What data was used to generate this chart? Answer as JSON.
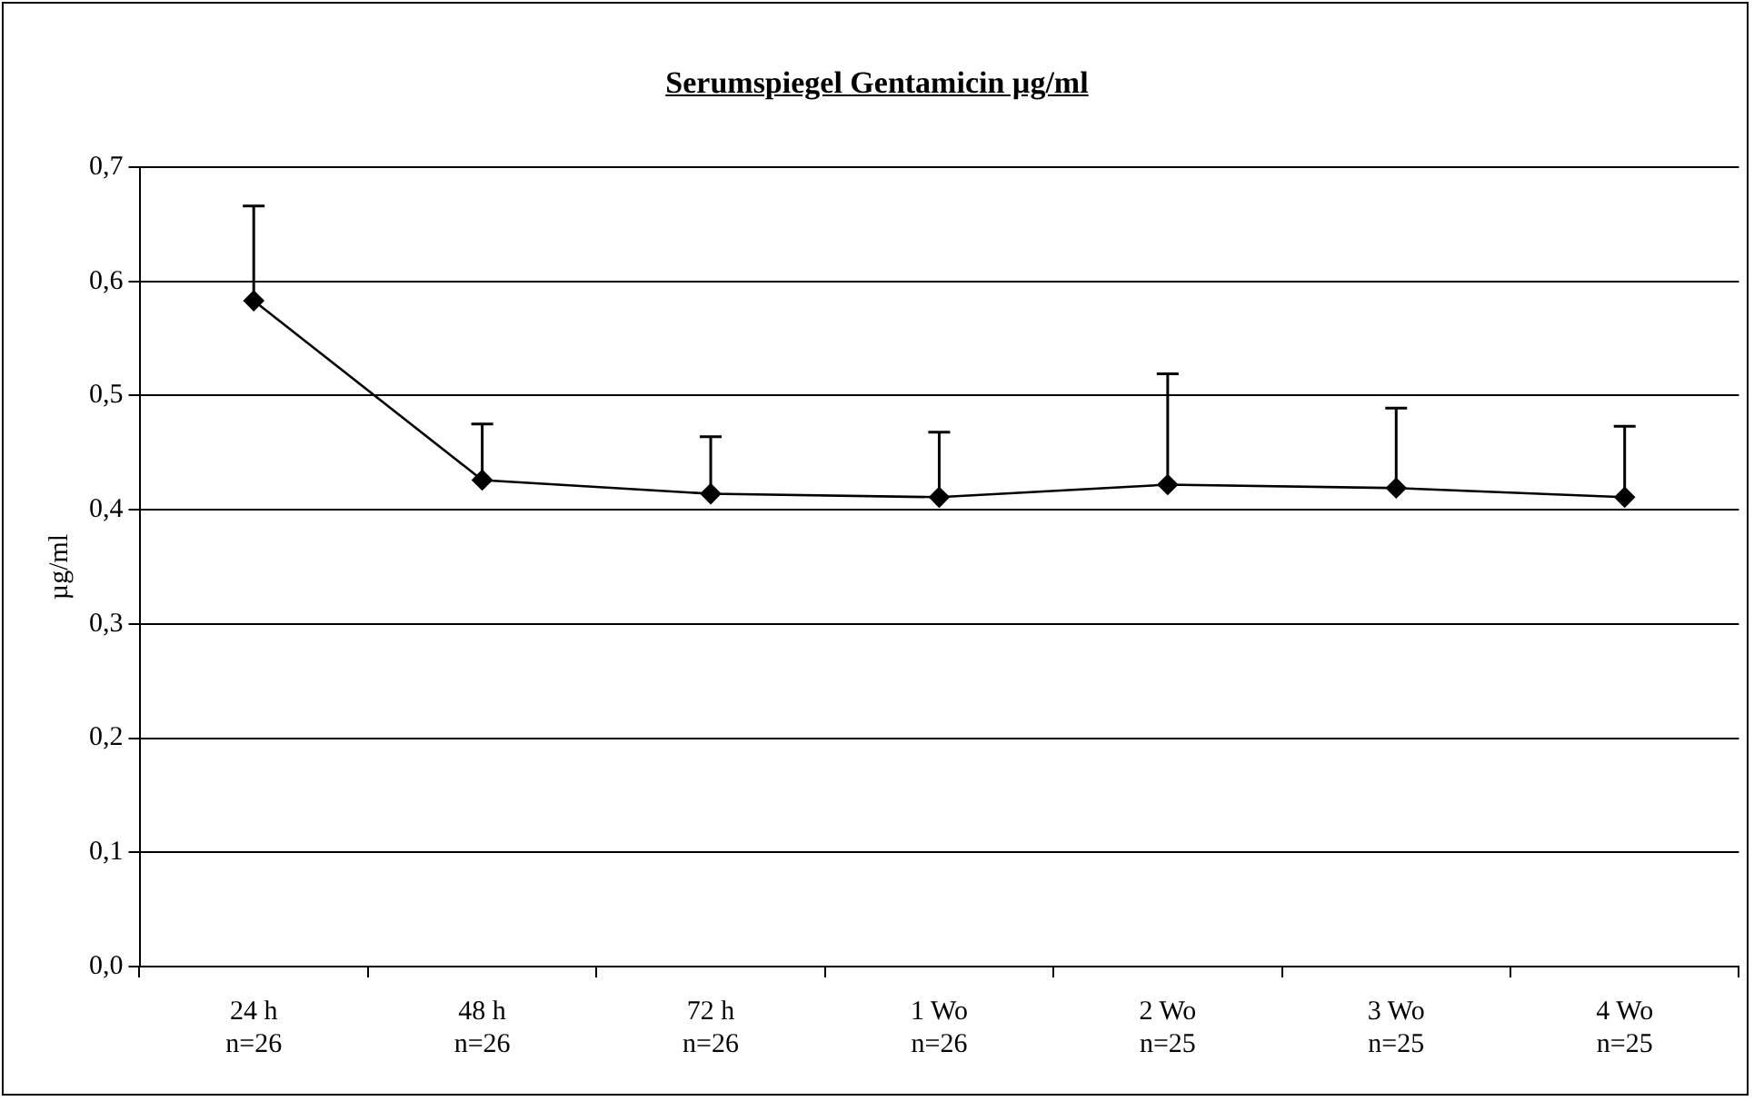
{
  "chart_data": {
    "type": "line",
    "title": "Serumspiegel Gentamicin µg/ml",
    "ylabel": "µg/ml",
    "categories": [
      "24 h\nn=26",
      "48 h\nn=26",
      "72 h\nn=26",
      "1 Wo\nn=26",
      "2 Wo\nn=25",
      "3 Wo\nn=25",
      "4 Wo\nn=25"
    ],
    "series": [
      {
        "color": "#000000",
        "values": [
          0.583,
          0.426,
          0.414,
          0.411,
          0.422,
          0.419,
          0.411
        ],
        "errors": [
          [
            0.583,
            0.666
          ],
          [
            0.426,
            0.475
          ],
          [
            0.414,
            0.464
          ],
          [
            0.411,
            0.468
          ],
          [
            0.422,
            0.519
          ],
          [
            0.419,
            0.489
          ],
          [
            0.411,
            0.473
          ]
        ]
      }
    ],
    "ylim": [
      0,
      0.7
    ],
    "yticks": [
      {
        "value": 0,
        "label": "0,0"
      },
      {
        "value": 0.1,
        "label": "0,1"
      },
      {
        "value": 0.2,
        "label": "0,2"
      },
      {
        "value": 0.3,
        "label": "0,3"
      },
      {
        "value": 0.4,
        "label": "0,4"
      },
      {
        "value": 0.5,
        "label": "0,5"
      },
      {
        "value": 0.6,
        "label": "0,6"
      },
      {
        "value": 0.7,
        "label": "0,7"
      }
    ],
    "grid": "y",
    "legend": false,
    "marker": "diamond",
    "line_style": "solid"
  }
}
